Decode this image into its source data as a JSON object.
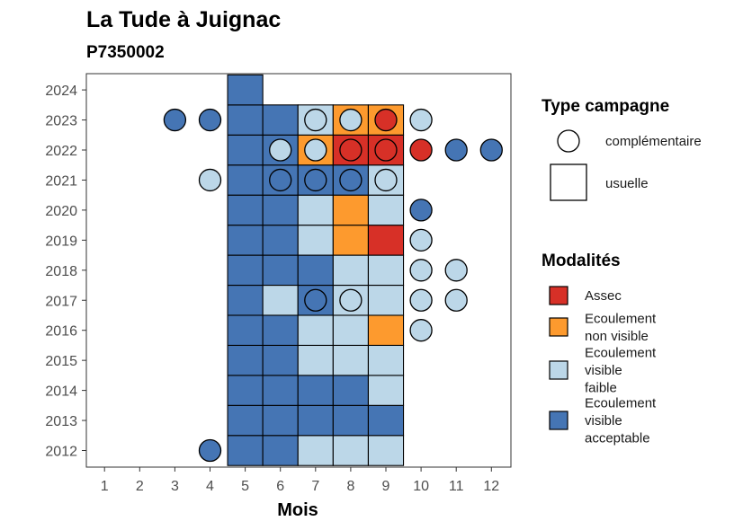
{
  "chart_data": {
    "type": "heatmap",
    "title": "La Tude à Juignac",
    "subtitle": "P7350002",
    "xlabel": "Mois",
    "ylabel": "",
    "x_ticks": [
      "1",
      "2",
      "3",
      "4",
      "5",
      "6",
      "7",
      "8",
      "9",
      "10",
      "11",
      "12"
    ],
    "y_ticks": [
      "2012",
      "2013",
      "2014",
      "2015",
      "2016",
      "2017",
      "2018",
      "2019",
      "2020",
      "2021",
      "2022",
      "2023",
      "2024"
    ],
    "xlim": [
      0.5,
      12.5
    ],
    "ylim": [
      2011.5,
      2024.5
    ],
    "grid": false,
    "legend_position": "right",
    "colors": {
      "Assec": "#d73027",
      "Ecoulement non visible": "#fd9a2e",
      "Ecoulement visible faible": "#bcd7e8",
      "Ecoulement visible acceptable": "#4575b4"
    },
    "legend_shape": {
      "title": "Type campagne",
      "items": [
        {
          "label": "complémentaire",
          "shape": "circle"
        },
        {
          "label": "usuelle",
          "shape": "square"
        }
      ]
    },
    "legend_fill": {
      "title": "Modalités",
      "items": [
        {
          "key": "Assec",
          "lines": [
            "Assec"
          ]
        },
        {
          "key": "Ecoulement non visible",
          "lines": [
            "Ecoulement",
            "non visible"
          ]
        },
        {
          "key": "Ecoulement visible faible",
          "lines": [
            "Ecoulement",
            "visible",
            "faible"
          ]
        },
        {
          "key": "Ecoulement visible acceptable",
          "lines": [
            "Ecoulement",
            "visible",
            "acceptable"
          ]
        }
      ]
    },
    "usuelle": [
      {
        "year": 2012,
        "month": 5,
        "modalite": "Ecoulement visible acceptable"
      },
      {
        "year": 2012,
        "month": 6,
        "modalite": "Ecoulement visible acceptable"
      },
      {
        "year": 2012,
        "month": 7,
        "modalite": "Ecoulement visible faible"
      },
      {
        "year": 2012,
        "month": 8,
        "modalite": "Ecoulement visible faible"
      },
      {
        "year": 2012,
        "month": 9,
        "modalite": "Ecoulement visible faible"
      },
      {
        "year": 2013,
        "month": 5,
        "modalite": "Ecoulement visible acceptable"
      },
      {
        "year": 2013,
        "month": 6,
        "modalite": "Ecoulement visible acceptable"
      },
      {
        "year": 2013,
        "month": 7,
        "modalite": "Ecoulement visible acceptable"
      },
      {
        "year": 2013,
        "month": 8,
        "modalite": "Ecoulement visible acceptable"
      },
      {
        "year": 2013,
        "month": 9,
        "modalite": "Ecoulement visible acceptable"
      },
      {
        "year": 2014,
        "month": 5,
        "modalite": "Ecoulement visible acceptable"
      },
      {
        "year": 2014,
        "month": 6,
        "modalite": "Ecoulement visible acceptable"
      },
      {
        "year": 2014,
        "month": 7,
        "modalite": "Ecoulement visible acceptable"
      },
      {
        "year": 2014,
        "month": 8,
        "modalite": "Ecoulement visible acceptable"
      },
      {
        "year": 2014,
        "month": 9,
        "modalite": "Ecoulement visible faible"
      },
      {
        "year": 2015,
        "month": 5,
        "modalite": "Ecoulement visible acceptable"
      },
      {
        "year": 2015,
        "month": 6,
        "modalite": "Ecoulement visible acceptable"
      },
      {
        "year": 2015,
        "month": 7,
        "modalite": "Ecoulement visible faible"
      },
      {
        "year": 2015,
        "month": 8,
        "modalite": "Ecoulement visible faible"
      },
      {
        "year": 2015,
        "month": 9,
        "modalite": "Ecoulement visible faible"
      },
      {
        "year": 2016,
        "month": 5,
        "modalite": "Ecoulement visible acceptable"
      },
      {
        "year": 2016,
        "month": 6,
        "modalite": "Ecoulement visible acceptable"
      },
      {
        "year": 2016,
        "month": 7,
        "modalite": "Ecoulement visible faible"
      },
      {
        "year": 2016,
        "month": 8,
        "modalite": "Ecoulement visible faible"
      },
      {
        "year": 2016,
        "month": 9,
        "modalite": "Ecoulement non visible"
      },
      {
        "year": 2017,
        "month": 5,
        "modalite": "Ecoulement visible acceptable"
      },
      {
        "year": 2017,
        "month": 6,
        "modalite": "Ecoulement visible faible"
      },
      {
        "year": 2017,
        "month": 7,
        "modalite": "Ecoulement visible acceptable"
      },
      {
        "year": 2017,
        "month": 8,
        "modalite": "Ecoulement visible faible"
      },
      {
        "year": 2017,
        "month": 9,
        "modalite": "Ecoulement visible faible"
      },
      {
        "year": 2018,
        "month": 5,
        "modalite": "Ecoulement visible acceptable"
      },
      {
        "year": 2018,
        "month": 6,
        "modalite": "Ecoulement visible acceptable"
      },
      {
        "year": 2018,
        "month": 7,
        "modalite": "Ecoulement visible acceptable"
      },
      {
        "year": 2018,
        "month": 8,
        "modalite": "Ecoulement visible faible"
      },
      {
        "year": 2018,
        "month": 9,
        "modalite": "Ecoulement visible faible"
      },
      {
        "year": 2019,
        "month": 5,
        "modalite": "Ecoulement visible acceptable"
      },
      {
        "year": 2019,
        "month": 6,
        "modalite": "Ecoulement visible acceptable"
      },
      {
        "year": 2019,
        "month": 7,
        "modalite": "Ecoulement visible faible"
      },
      {
        "year": 2019,
        "month": 8,
        "modalite": "Ecoulement non visible"
      },
      {
        "year": 2019,
        "month": 9,
        "modalite": "Assec"
      },
      {
        "year": 2020,
        "month": 5,
        "modalite": "Ecoulement visible acceptable"
      },
      {
        "year": 2020,
        "month": 6,
        "modalite": "Ecoulement visible acceptable"
      },
      {
        "year": 2020,
        "month": 7,
        "modalite": "Ecoulement visible faible"
      },
      {
        "year": 2020,
        "month": 8,
        "modalite": "Ecoulement non visible"
      },
      {
        "year": 2020,
        "month": 9,
        "modalite": "Ecoulement visible faible"
      },
      {
        "year": 2021,
        "month": 5,
        "modalite": "Ecoulement visible acceptable"
      },
      {
        "year": 2021,
        "month": 6,
        "modalite": "Ecoulement visible acceptable"
      },
      {
        "year": 2021,
        "month": 7,
        "modalite": "Ecoulement visible acceptable"
      },
      {
        "year": 2021,
        "month": 8,
        "modalite": "Ecoulement visible acceptable"
      },
      {
        "year": 2021,
        "month": 9,
        "modalite": "Ecoulement visible faible"
      },
      {
        "year": 2022,
        "month": 5,
        "modalite": "Ecoulement visible acceptable"
      },
      {
        "year": 2022,
        "month": 6,
        "modalite": "Ecoulement visible acceptable"
      },
      {
        "year": 2022,
        "month": 7,
        "modalite": "Ecoulement non visible"
      },
      {
        "year": 2022,
        "month": 8,
        "modalite": "Assec"
      },
      {
        "year": 2022,
        "month": 9,
        "modalite": "Assec"
      },
      {
        "year": 2023,
        "month": 5,
        "modalite": "Ecoulement visible acceptable"
      },
      {
        "year": 2023,
        "month": 6,
        "modalite": "Ecoulement visible acceptable"
      },
      {
        "year": 2023,
        "month": 7,
        "modalite": "Ecoulement visible faible"
      },
      {
        "year": 2023,
        "month": 8,
        "modalite": "Ecoulement non visible"
      },
      {
        "year": 2023,
        "month": 9,
        "modalite": "Ecoulement non visible"
      },
      {
        "year": 2024,
        "month": 5,
        "modalite": "Ecoulement visible acceptable"
      }
    ],
    "complementaire": [
      {
        "year": 2012,
        "month": 4,
        "modalite": "Ecoulement visible acceptable"
      },
      {
        "year": 2016,
        "month": 10,
        "modalite": "Ecoulement visible faible"
      },
      {
        "year": 2017,
        "month": 7,
        "modalite": "Ecoulement visible acceptable"
      },
      {
        "year": 2017,
        "month": 8,
        "modalite": "Ecoulement visible faible"
      },
      {
        "year": 2017,
        "month": 10,
        "modalite": "Ecoulement visible faible"
      },
      {
        "year": 2017,
        "month": 11,
        "modalite": "Ecoulement visible faible"
      },
      {
        "year": 2018,
        "month": 10,
        "modalite": "Ecoulement visible faible"
      },
      {
        "year": 2018,
        "month": 11,
        "modalite": "Ecoulement visible faible"
      },
      {
        "year": 2019,
        "month": 10,
        "modalite": "Ecoulement visible faible"
      },
      {
        "year": 2020,
        "month": 10,
        "modalite": "Ecoulement visible acceptable"
      },
      {
        "year": 2021,
        "month": 4,
        "modalite": "Ecoulement visible faible"
      },
      {
        "year": 2021,
        "month": 6,
        "modalite": "Ecoulement visible acceptable"
      },
      {
        "year": 2021,
        "month": 7,
        "modalite": "Ecoulement visible acceptable"
      },
      {
        "year": 2021,
        "month": 8,
        "modalite": "Ecoulement visible acceptable"
      },
      {
        "year": 2021,
        "month": 9,
        "modalite": "Ecoulement visible faible"
      },
      {
        "year": 2022,
        "month": 6,
        "modalite": "Ecoulement visible faible"
      },
      {
        "year": 2022,
        "month": 7,
        "modalite": "Ecoulement visible faible"
      },
      {
        "year": 2022,
        "month": 8,
        "modalite": "Assec"
      },
      {
        "year": 2022,
        "month": 9,
        "modalite": "Assec"
      },
      {
        "year": 2022,
        "month": 10,
        "modalite": "Assec"
      },
      {
        "year": 2022,
        "month": 11,
        "modalite": "Ecoulement visible acceptable"
      },
      {
        "year": 2022,
        "month": 12,
        "modalite": "Ecoulement visible acceptable"
      },
      {
        "year": 2023,
        "month": 3,
        "modalite": "Ecoulement visible acceptable"
      },
      {
        "year": 2023,
        "month": 4,
        "modalite": "Ecoulement visible acceptable"
      },
      {
        "year": 2023,
        "month": 7,
        "modalite": "Ecoulement visible faible"
      },
      {
        "year": 2023,
        "month": 8,
        "modalite": "Ecoulement visible faible"
      },
      {
        "year": 2023,
        "month": 9,
        "modalite": "Assec"
      },
      {
        "year": 2023,
        "month": 10,
        "modalite": "Ecoulement visible faible"
      }
    ]
  }
}
